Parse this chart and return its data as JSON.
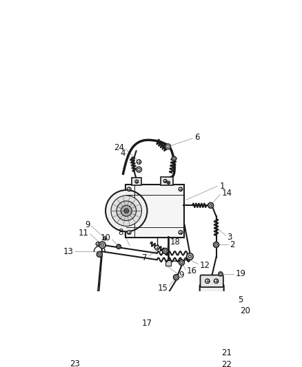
{
  "bg_color": "#ffffff",
  "lc": "#1a1a1a",
  "lc_light": "#555555",
  "lc_gray": "#888888",
  "leader_color": "#aaaaaa",
  "label_color": "#111111",
  "figsize": [
    4.38,
    5.33
  ],
  "dpi": 100,
  "label_fs": 8.5
}
